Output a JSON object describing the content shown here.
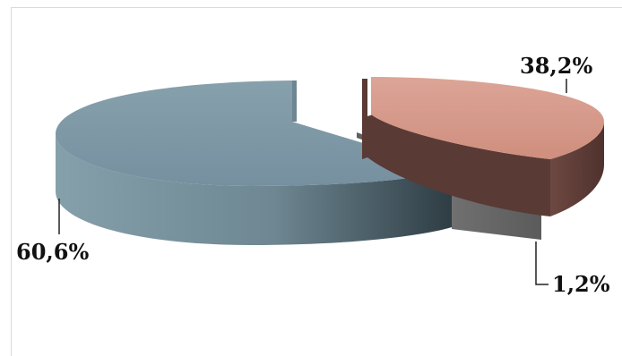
{
  "chart_data": {
    "type": "pie",
    "title": "",
    "three_d": true,
    "exploded": true,
    "slices": [
      {
        "label": "38,2%",
        "value": 38.2,
        "color_top": "#d59686",
        "color_side": "#5e3c37"
      },
      {
        "label": "1,2%",
        "value": 1.2,
        "color_top": "#e6e6e6",
        "color_side": "#6a6a6a"
      },
      {
        "label": "60,6%",
        "value": 60.6,
        "color_top": "#7e97a2",
        "color_side": "#41525b"
      }
    ]
  }
}
